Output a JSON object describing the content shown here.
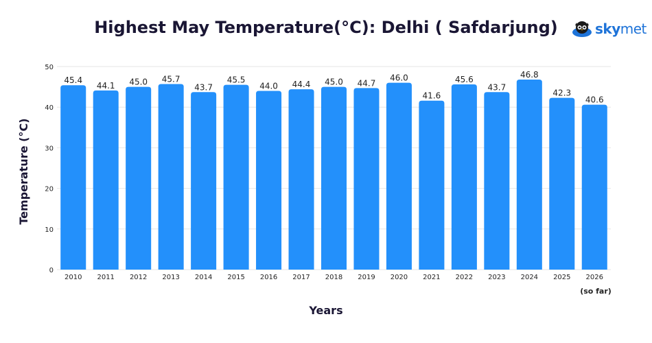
{
  "chart_data": {
    "type": "bar",
    "title": "Highest May Temperature(°C): Delhi ( Safdarjung)",
    "xlabel": "Years",
    "ylabel": "Temperature (°C)",
    "categories": [
      "2010",
      "2011",
      "2012",
      "2013",
      "2014",
      "2015",
      "2016",
      "2017",
      "2018",
      "2019",
      "2020",
      "2021",
      "2022",
      "2023",
      "2024",
      "2025",
      "2026"
    ],
    "category_note": "(so far)",
    "values": [
      45.4,
      44.1,
      45.0,
      45.7,
      43.7,
      45.5,
      44.0,
      44.4,
      45.0,
      44.7,
      46.0,
      41.6,
      45.6,
      43.7,
      46.8,
      42.3,
      40.6
    ],
    "data_labels": [
      "45.4",
      "44.1",
      "45.0",
      "45.7",
      "43.7",
      "45.5",
      "44.0",
      "44.4",
      "45.0",
      "44.7",
      "46.0",
      "41.6",
      "45.6",
      "43.7",
      "46.8",
      "42.3",
      "40.6"
    ],
    "ylim": [
      0,
      50
    ],
    "yticks": [
      0,
      10,
      20,
      30,
      40,
      50
    ],
    "grid": true,
    "bar_color": "#2390fb",
    "grid_color": "#e6e6e6",
    "legend": "none"
  },
  "logo": {
    "bold": "sky",
    "rest": "met",
    "icon": "owl-cloud-icon"
  }
}
